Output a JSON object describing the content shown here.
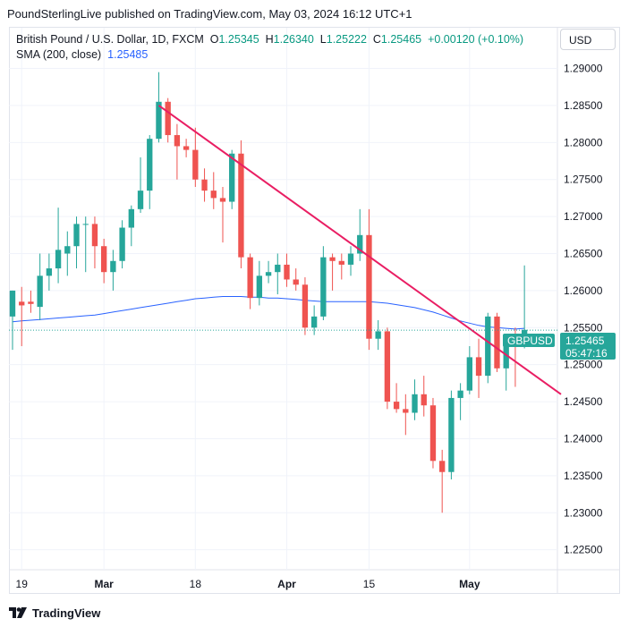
{
  "header": {
    "publisher_line": "PoundSterlingLive published on TradingView.com, May 03, 2024 16:12 UTC+1"
  },
  "legend": {
    "symbol": "British Pound / U.S. Dollar, 1D, FXCM",
    "open_key": "O",
    "open": "1.25345",
    "high_key": "H",
    "high": "1.26340",
    "low_key": "L",
    "low": "1.25222",
    "close_key": "C",
    "close": "1.25465",
    "change": "+0.00120 (+0.10%)",
    "sma_label": "SMA (200, close)",
    "sma_value": "1.25485"
  },
  "currency_button": "USD",
  "price_tag": {
    "symbol": "GBPUSD",
    "price": "1.25465",
    "countdown": "05:47:16"
  },
  "footer": {
    "brand": "TradingView"
  },
  "colors": {
    "up": "#26a69a",
    "down": "#ef5350",
    "sma": "#2962ff",
    "trendline": "#e91e63",
    "grid": "#f0f3fa",
    "price_tag_bg": "#26a69a",
    "countdown_bg": "#26a69a"
  },
  "chart_data": {
    "type": "candlestick",
    "symbol": "GBPUSD",
    "timeframe": "1D",
    "y_ticks": [
      "1.29000",
      "1.28500",
      "1.28000",
      "1.27500",
      "1.27000",
      "1.26500",
      "1.26000",
      "1.25500",
      "1.25000",
      "1.24500",
      "1.24000",
      "1.23500",
      "1.23000",
      "1.22500"
    ],
    "ylim": [
      1.2223,
      1.2955
    ],
    "x_ticks": [
      {
        "label": "19",
        "index": 1
      },
      {
        "label": "Mar",
        "index": 10
      },
      {
        "label": "18",
        "index": 20
      },
      {
        "label": "Apr",
        "index": 30
      },
      {
        "label": "15",
        "index": 39
      },
      {
        "label": "May",
        "index": 50
      }
    ],
    "x_slots": 60,
    "candles": [
      {
        "o": 1.2565,
        "h": 1.26,
        "l": 1.252,
        "c": 1.26
      },
      {
        "o": 1.2585,
        "h": 1.2605,
        "l": 1.2525,
        "c": 1.258
      },
      {
        "o": 1.2585,
        "h": 1.26,
        "l": 1.257,
        "c": 1.2582
      },
      {
        "o": 1.2578,
        "h": 1.265,
        "l": 1.256,
        "c": 1.262
      },
      {
        "o": 1.262,
        "h": 1.265,
        "l": 1.26,
        "c": 1.263
      },
      {
        "o": 1.263,
        "h": 1.2712,
        "l": 1.261,
        "c": 1.2655
      },
      {
        "o": 1.265,
        "h": 1.268,
        "l": 1.262,
        "c": 1.266
      },
      {
        "o": 1.266,
        "h": 1.27,
        "l": 1.263,
        "c": 1.269
      },
      {
        "o": 1.269,
        "h": 1.27,
        "l": 1.2625,
        "c": 1.269
      },
      {
        "o": 1.269,
        "h": 1.27,
        "l": 1.263,
        "c": 1.266
      },
      {
        "o": 1.266,
        "h": 1.267,
        "l": 1.261,
        "c": 1.2625
      },
      {
        "o": 1.2625,
        "h": 1.2655,
        "l": 1.26,
        "c": 1.264
      },
      {
        "o": 1.264,
        "h": 1.2695,
        "l": 1.263,
        "c": 1.2685
      },
      {
        "o": 1.2685,
        "h": 1.2715,
        "l": 1.266,
        "c": 1.271
      },
      {
        "o": 1.271,
        "h": 1.278,
        "l": 1.2705,
        "c": 1.2735
      },
      {
        "o": 1.2735,
        "h": 1.281,
        "l": 1.271,
        "c": 1.2805
      },
      {
        "o": 1.2805,
        "h": 1.2895,
        "l": 1.28,
        "c": 1.2855
      },
      {
        "o": 1.2855,
        "h": 1.286,
        "l": 1.28,
        "c": 1.281
      },
      {
        "o": 1.281,
        "h": 1.2825,
        "l": 1.275,
        "c": 1.2795
      },
      {
        "o": 1.2795,
        "h": 1.2805,
        "l": 1.278,
        "c": 1.279
      },
      {
        "o": 1.279,
        "h": 1.282,
        "l": 1.274,
        "c": 1.275
      },
      {
        "o": 1.275,
        "h": 1.2765,
        "l": 1.272,
        "c": 1.2735
      },
      {
        "o": 1.2735,
        "h": 1.276,
        "l": 1.271,
        "c": 1.2725
      },
      {
        "o": 1.2725,
        "h": 1.274,
        "l": 1.2665,
        "c": 1.272
      },
      {
        "o": 1.272,
        "h": 1.279,
        "l": 1.271,
        "c": 1.2785
      },
      {
        "o": 1.2785,
        "h": 1.2803,
        "l": 1.263,
        "c": 1.2645
      },
      {
        "o": 1.2645,
        "h": 1.265,
        "l": 1.2575,
        "c": 1.259
      },
      {
        "o": 1.259,
        "h": 1.264,
        "l": 1.258,
        "c": 1.262
      },
      {
        "o": 1.262,
        "h": 1.264,
        "l": 1.261,
        "c": 1.2625
      },
      {
        "o": 1.2625,
        "h": 1.265,
        "l": 1.2595,
        "c": 1.2635
      },
      {
        "o": 1.2635,
        "h": 1.265,
        "l": 1.2605,
        "c": 1.2615
      },
      {
        "o": 1.2615,
        "h": 1.263,
        "l": 1.26,
        "c": 1.2608
      },
      {
        "o": 1.2608,
        "h": 1.2618,
        "l": 1.254,
        "c": 1.255
      },
      {
        "o": 1.255,
        "h": 1.258,
        "l": 1.254,
        "c": 1.2565
      },
      {
        "o": 1.2565,
        "h": 1.266,
        "l": 1.256,
        "c": 1.2645
      },
      {
        "o": 1.2645,
        "h": 1.265,
        "l": 1.26,
        "c": 1.264
      },
      {
        "o": 1.264,
        "h": 1.265,
        "l": 1.2615,
        "c": 1.2635
      },
      {
        "o": 1.2635,
        "h": 1.266,
        "l": 1.262,
        "c": 1.265
      },
      {
        "o": 1.265,
        "h": 1.271,
        "l": 1.264,
        "c": 1.2675
      },
      {
        "o": 1.2675,
        "h": 1.271,
        "l": 1.252,
        "c": 1.2535
      },
      {
        "o": 1.2535,
        "h": 1.256,
        "l": 1.252,
        "c": 1.2545
      },
      {
        "o": 1.2545,
        "h": 1.255,
        "l": 1.244,
        "c": 1.245
      },
      {
        "o": 1.245,
        "h": 1.2475,
        "l": 1.2435,
        "c": 1.244
      },
      {
        "o": 1.244,
        "h": 1.246,
        "l": 1.2405,
        "c": 1.2435
      },
      {
        "o": 1.2435,
        "h": 1.248,
        "l": 1.2425,
        "c": 1.246
      },
      {
        "o": 1.246,
        "h": 1.2485,
        "l": 1.243,
        "c": 1.2445
      },
      {
        "o": 1.2445,
        "h": 1.2455,
        "l": 1.236,
        "c": 1.237
      },
      {
        "o": 1.237,
        "h": 1.2385,
        "l": 1.23,
        "c": 1.2355
      },
      {
        "o": 1.2355,
        "h": 1.2465,
        "l": 1.2345,
        "c": 1.2455
      },
      {
        "o": 1.2455,
        "h": 1.2475,
        "l": 1.2425,
        "c": 1.2465
      },
      {
        "o": 1.2465,
        "h": 1.2525,
        "l": 1.246,
        "c": 1.251
      },
      {
        "o": 1.251,
        "h": 1.2535,
        "l": 1.2455,
        "c": 1.2485
      },
      {
        "o": 1.2485,
        "h": 1.257,
        "l": 1.2475,
        "c": 1.2565
      },
      {
        "o": 1.2565,
        "h": 1.257,
        "l": 1.249,
        "c": 1.2495
      },
      {
        "o": 1.2495,
        "h": 1.254,
        "l": 1.2465,
        "c": 1.253
      },
      {
        "o": 1.253,
        "h": 1.255,
        "l": 1.247,
        "c": 1.2525
      },
      {
        "o": 1.2535,
        "h": 1.2634,
        "l": 1.2522,
        "c": 1.2547
      }
    ],
    "sma_200": [
      1.2558,
      1.2559,
      1.256,
      1.2561,
      1.2562,
      1.2563,
      1.2564,
      1.2565,
      1.2566,
      1.2567,
      1.2569,
      1.2571,
      1.2573,
      1.2575,
      1.2577,
      1.2579,
      1.2581,
      1.2583,
      1.2585,
      1.2587,
      1.2589,
      1.259,
      1.2591,
      1.2592,
      1.2592,
      1.2592,
      1.2591,
      1.2591,
      1.259,
      1.259,
      1.2589,
      1.2588,
      1.2587,
      1.2586,
      1.2585,
      1.2585,
      1.2585,
      1.2585,
      1.2585,
      1.2585,
      1.2584,
      1.2583,
      1.2581,
      1.2579,
      1.2577,
      1.2574,
      1.2571,
      1.2567,
      1.2563,
      1.2559,
      1.2556,
      1.2553,
      1.2551,
      1.255,
      1.2549,
      1.2548,
      1.2549
    ],
    "trendline": {
      "from": {
        "index": 16,
        "price": 1.285
      },
      "to": {
        "index": 60,
        "price": 1.246
      }
    },
    "last_price_line": 1.25465
  }
}
